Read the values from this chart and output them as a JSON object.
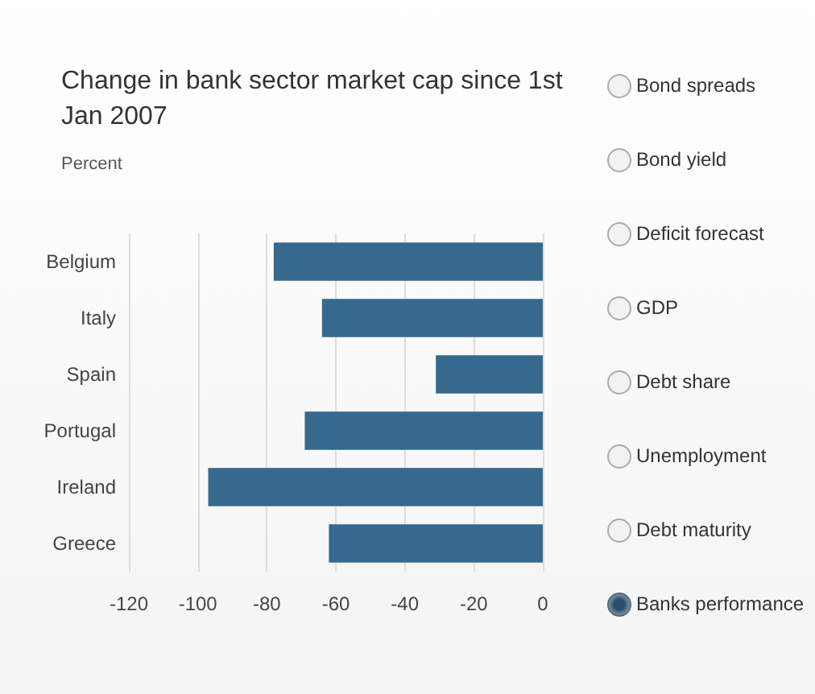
{
  "chart_data": {
    "type": "bar",
    "orientation": "horizontal",
    "title": "Change in bank sector market cap since 1st Jan 2007",
    "subtitle": "Percent",
    "categories": [
      "Belgium",
      "Italy",
      "Spain",
      "Portugal",
      "Ireland",
      "Greece"
    ],
    "values": [
      -78,
      -64,
      -31,
      -69,
      -97,
      -62
    ],
    "color": "#36698d",
    "xlim": [
      -120,
      0
    ],
    "xticks": [
      -120,
      -100,
      -80,
      -60,
      -40,
      -20,
      0
    ],
    "grid": "x",
    "annotations": [
      "Bond spreads",
      "Bond yield",
      "Deficit forecast",
      "GDP",
      "Debt share",
      "Unemployment",
      "Debt maturity",
      "Banks performance"
    ]
  }
}
